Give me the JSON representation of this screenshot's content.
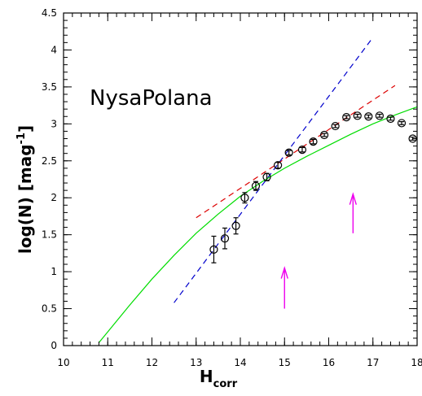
{
  "chart_data": {
    "type": "scatter",
    "annotation": "NysaPolana",
    "xlabel": {
      "main": "H",
      "sub": "corr"
    },
    "ylabel": {
      "main": "log(N)  [mag",
      "sup": "-1",
      "end": "]"
    },
    "xlim": [
      10,
      18
    ],
    "ylim": [
      0,
      4.5
    ],
    "xticks": [
      10,
      11,
      12,
      13,
      14,
      15,
      16,
      17,
      18
    ],
    "yticks": [
      0,
      0.5,
      1,
      1.5,
      2,
      2.5,
      3,
      3.5,
      4,
      4.5
    ],
    "xtick_labels": [
      "10",
      "11",
      "12",
      "13",
      "14",
      "15",
      "16",
      "17",
      "18"
    ],
    "ytick_labels": [
      "0",
      "0.5",
      "1",
      "1.5",
      "2",
      "2.5",
      "3",
      "3.5",
      "4",
      "4.5"
    ],
    "grid": false,
    "series": [
      {
        "kind": "points",
        "color": "#000000",
        "points": [
          {
            "x": 13.4,
            "y": 1.3,
            "err": 0.18
          },
          {
            "x": 13.65,
            "y": 1.45,
            "err": 0.14
          },
          {
            "x": 13.9,
            "y": 1.62,
            "err": 0.11
          },
          {
            "x": 14.1,
            "y": 2.0,
            "err": 0.07
          },
          {
            "x": 14.35,
            "y": 2.16,
            "err": 0.06
          },
          {
            "x": 14.6,
            "y": 2.28,
            "err": 0.05
          },
          {
            "x": 14.85,
            "y": 2.44,
            "err": 0.04
          },
          {
            "x": 15.1,
            "y": 2.61,
            "err": 0.03
          },
          {
            "x": 15.4,
            "y": 2.65,
            "err": 0.03
          },
          {
            "x": 15.65,
            "y": 2.76,
            "err": 0.03
          },
          {
            "x": 15.9,
            "y": 2.85,
            "err": 0.02
          },
          {
            "x": 16.15,
            "y": 2.97,
            "err": 0.02
          },
          {
            "x": 16.4,
            "y": 3.09,
            "err": 0.02
          },
          {
            "x": 16.65,
            "y": 3.11,
            "err": 0.02
          },
          {
            "x": 16.9,
            "y": 3.1,
            "err": 0.02
          },
          {
            "x": 17.15,
            "y": 3.11,
            "err": 0.02
          },
          {
            "x": 17.4,
            "y": 3.07,
            "err": 0.02
          },
          {
            "x": 17.65,
            "y": 3.01,
            "err": 0.02
          },
          {
            "x": 17.9,
            "y": 2.8,
            "err": 0.02
          }
        ]
      },
      {
        "kind": "dashed-line",
        "color": "#0000cc",
        "x": [
          12.5,
          17.0
        ],
        "y": [
          0.58,
          4.17
        ]
      },
      {
        "kind": "dashed-line",
        "color": "#dd0000",
        "x": [
          13.0,
          17.5
        ],
        "y": [
          1.73,
          3.52
        ]
      },
      {
        "kind": "line",
        "color": "#00dd00",
        "x": [
          10.8,
          11.5,
          12.0,
          12.5,
          13.0,
          13.5,
          14.0,
          14.5,
          15.0,
          15.5,
          16.0,
          16.5,
          17.0,
          17.5,
          18.0
        ],
        "y": [
          0.04,
          0.55,
          0.9,
          1.22,
          1.52,
          1.78,
          2.02,
          2.22,
          2.4,
          2.56,
          2.71,
          2.86,
          3.0,
          3.12,
          3.23
        ]
      }
    ],
    "arrows": [
      {
        "x": 15.0,
        "y_from": 0.5,
        "y_to": 1.05,
        "color": "#ee00ee"
      },
      {
        "x": 16.55,
        "y_from": 1.52,
        "y_to": 2.05,
        "color": "#ee00ee"
      }
    ]
  }
}
